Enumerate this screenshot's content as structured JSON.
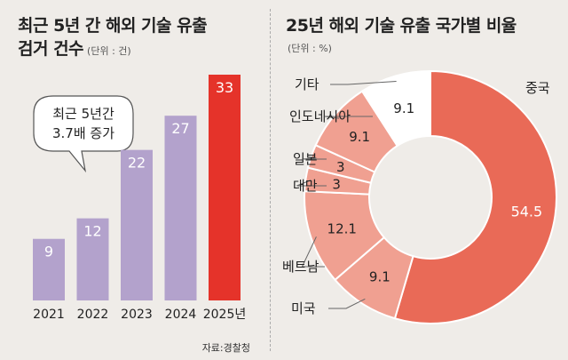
{
  "left": {
    "title_line1": "최근 5년 간 해외 기술 유출",
    "title_line2": "검거 건수",
    "unit": "(단위 : 건)",
    "callout_line1": "최근 5년간",
    "callout_line2": "3.7배 증가",
    "source": "자료:경찰청"
  },
  "right": {
    "title": "25년 해외 기술 유출 국가별 비율",
    "unit": "(단위 : %)"
  },
  "colors": {
    "bar": "#b3a2cc",
    "bar_highlight": "#e5332a",
    "china": "#e96a57",
    "others": "#f0a091",
    "etc": "#ffffff",
    "background": "#efece8"
  },
  "chart_data": [
    {
      "type": "bar",
      "categories": [
        "2021",
        "2022",
        "2023",
        "2024",
        "2025년"
      ],
      "values": [
        9,
        12,
        22,
        27,
        33
      ],
      "ylim": [
        0,
        35
      ]
    },
    {
      "type": "pie",
      "donut": true,
      "labels": [
        "중국",
        "미국",
        "베트남",
        "대만",
        "일본",
        "인도네시아",
        "기타"
      ],
      "values": [
        54.5,
        9.1,
        12.1,
        3,
        3,
        9.1,
        9.1
      ],
      "value_labels": [
        "54.5",
        "9.1",
        "12.1",
        "3",
        "3",
        "9.1",
        "9.1"
      ]
    }
  ]
}
